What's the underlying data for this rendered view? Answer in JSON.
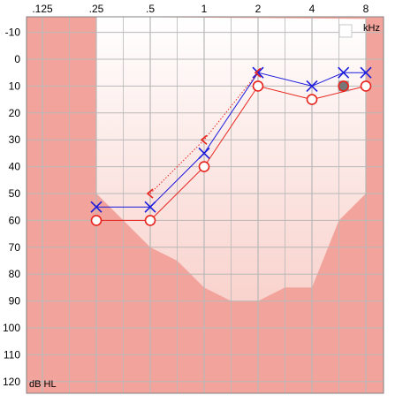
{
  "chart_data": {
    "type": "line",
    "x_unit_label": "kHz",
    "y_unit_label": "dB HL",
    "x_scale": "log2",
    "y_inverted": true,
    "frequency_ticks": [
      ".125",
      ".25",
      ".5",
      "1",
      "2",
      "4",
      "8"
    ],
    "frequency_values": [
      0.125,
      0.25,
      0.5,
      1,
      2,
      4,
      8
    ],
    "level_ticks": [
      -10,
      0,
      10,
      20,
      30,
      40,
      50,
      60,
      70,
      80,
      90,
      100,
      110,
      120
    ],
    "ylim": [
      -15,
      125
    ],
    "xlim": [
      0.125,
      8
    ],
    "minor_frequency_gridlines": [
      0.177,
      0.354,
      0.707,
      1.414,
      2.828,
      5.657
    ],
    "grid": true,
    "legend_checkbox_checked": false,
    "colors": {
      "outer_region": "#f2a49c",
      "inner_gradient_top": "#ffffff",
      "inner_gradient_bottom": "#f7c4bd",
      "lower_band": "#f6bab3",
      "right_ear": "#e8231c",
      "left_ear": "#1b1bdc",
      "grid": "#b8b8b8",
      "frame": "#808080"
    },
    "regions": {
      "outer_shaded_fill": [
        {
          "f": 0.25,
          "db": -15
        },
        {
          "f": 0.25,
          "db": 50
        },
        {
          "f": 0.354,
          "db": 60
        },
        {
          "f": 0.5,
          "db": 70
        },
        {
          "f": 0.707,
          "db": 75
        },
        {
          "f": 1,
          "db": 85
        },
        {
          "f": 1.414,
          "db": 90
        },
        {
          "f": 2,
          "db": 90
        },
        {
          "f": 2.828,
          "db": 85
        },
        {
          "f": 4,
          "db": 85
        },
        {
          "f": 5.657,
          "db": 60
        },
        {
          "f": 8,
          "db": 50
        },
        {
          "f": 8,
          "db": -15
        }
      ],
      "lower_band_top": [
        {
          "f": 1,
          "db": 85
        },
        {
          "f": 1.414,
          "db": 90
        },
        {
          "f": 2,
          "db": 90
        },
        {
          "f": 2.828,
          "db": 85
        },
        {
          "f": 4,
          "db": 85
        }
      ]
    },
    "series": [
      {
        "ear": "right",
        "marker": "circle",
        "color": "#e8231c",
        "x": [
          0.25,
          0.5,
          1,
          2,
          4,
          8
        ],
        "y": [
          60,
          60,
          40,
          10,
          15,
          10
        ]
      },
      {
        "ear": "left",
        "marker": "cross",
        "color": "#1b1bdc",
        "x": [
          0.25,
          0.5,
          1,
          2,
          4,
          6,
          8
        ],
        "y": [
          55,
          55,
          35,
          5,
          10,
          5,
          5
        ]
      },
      {
        "ear": "right",
        "marker": "bone-bracket",
        "line": "dotted",
        "color": "#e8231c",
        "x": [
          0.5,
          1,
          2
        ],
        "y": [
          50,
          30,
          5
        ]
      }
    ],
    "extra_markers": [
      {
        "type": "masked-filled-circle",
        "f": 6,
        "db": 10,
        "color": "#e8231c"
      }
    ]
  }
}
